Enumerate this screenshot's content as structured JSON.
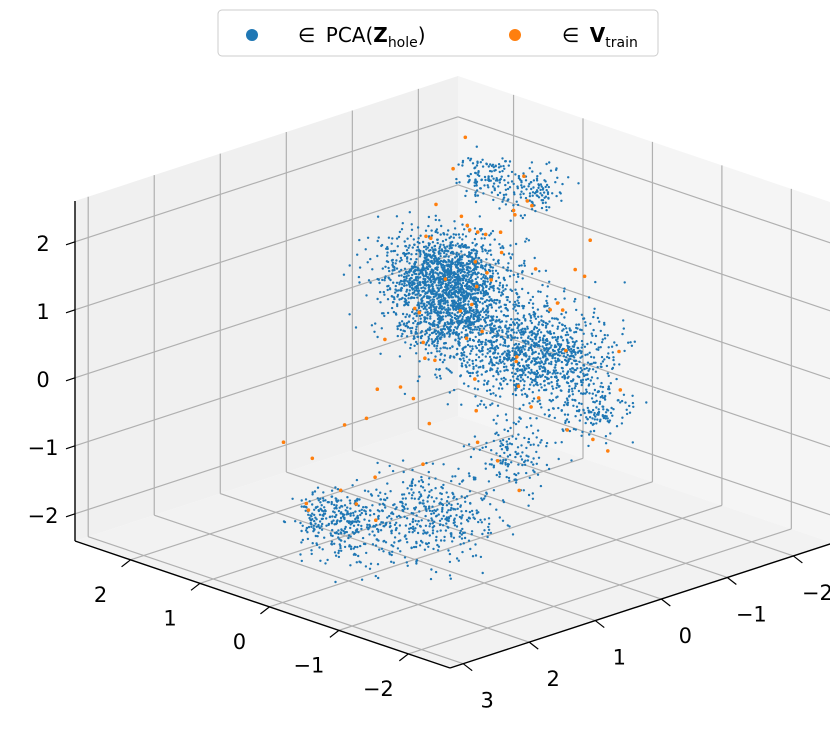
{
  "chart_data": {
    "type": "scatter",
    "projection": "3d",
    "title": "",
    "grid": true,
    "legend_position": "top-center",
    "legend": [
      {
        "symbol": "∈",
        "text": "PCA(",
        "bold": "Z",
        "subscript": "hole",
        "suffix": ")",
        "color": "#1f77b4"
      },
      {
        "symbol": "∈",
        "text": "",
        "bold": "V",
        "subscript": "train",
        "suffix": "",
        "color": "#ff7f0e"
      }
    ],
    "axes": {
      "x": {
        "ticks": [
          "−2",
          "−1",
          "0",
          "1",
          "2"
        ],
        "values": [
          -2,
          -1,
          0,
          1,
          2
        ],
        "range": [
          -2.6,
          2.8
        ]
      },
      "y": {
        "ticks": [
          "−2",
          "−1",
          "0",
          "1",
          "2",
          "3"
        ],
        "values": [
          -2,
          -1,
          0,
          1,
          2,
          3
        ],
        "range": [
          -2.6,
          3.2
        ]
      },
      "z": {
        "ticks": [
          "−2",
          "−1",
          "0",
          "1",
          "2"
        ],
        "values": [
          -2,
          -1,
          0,
          1,
          2
        ],
        "range": [
          -2.4,
          2.6
        ]
      }
    },
    "series": [
      {
        "key": "pca_z_hole",
        "color": "#1f77b4",
        "clusters": [
          {
            "center": [
              0.2,
              0.2,
              1.2
            ],
            "spread": [
              0.45,
              0.35,
              0.35
            ],
            "count": 900
          },
          {
            "center": [
              -0.3,
              -0.3,
              0.3
            ],
            "spread": [
              0.35,
              0.4,
              0.3
            ],
            "count": 650
          },
          {
            "center": [
              -1.3,
              0.2,
              0.8
            ],
            "spread": [
              0.3,
              0.3,
              0.3
            ],
            "count": 350
          },
          {
            "center": [
              -2.0,
              0.4,
              0.3
            ],
            "spread": [
              0.2,
              0.2,
              0.2
            ],
            "count": 160
          },
          {
            "center": [
              -1.4,
              1.0,
              -0.4
            ],
            "spread": [
              0.2,
              0.2,
              0.3
            ],
            "count": 150
          },
          {
            "center": [
              -0.8,
              1.6,
              -1.3
            ],
            "spread": [
              0.35,
              0.3,
              0.3
            ],
            "count": 400
          },
          {
            "center": [
              -0.1,
              2.1,
              -1.6
            ],
            "spread": [
              0.25,
              0.25,
              0.25
            ],
            "count": 250
          },
          {
            "center": [
              0.9,
              1.4,
              -1.9
            ],
            "spread": [
              0.2,
              0.2,
              0.15
            ],
            "count": 100
          },
          {
            "center": [
              1.2,
              -0.6,
              0.9
            ],
            "spread": [
              0.3,
              0.25,
              0.25
            ],
            "count": 500
          },
          {
            "center": [
              0.9,
              -0.4,
              0.2
            ],
            "spread": [
              0.3,
              0.25,
              0.2
            ],
            "count": 260
          },
          {
            "center": [
              1.3,
              -1.2,
              0.0
            ],
            "spread": [
              0.15,
              0.15,
              0.15
            ],
            "count": 100
          },
          {
            "center": [
              1.7,
              -1.3,
              0.2
            ],
            "spread": [
              0.2,
              0.2,
              0.2
            ],
            "count": 160
          },
          {
            "center": [
              2.1,
              -2.0,
              0.3
            ],
            "spread": [
              0.2,
              0.2,
              0.2
            ],
            "count": 160
          },
          {
            "center": [
              2.2,
              -2.4,
              1.4
            ],
            "spread": [
              0.15,
              0.15,
              0.15
            ],
            "count": 120
          },
          {
            "center": [
              0.1,
              -0.9,
              2.4
            ],
            "spread": [
              0.15,
              0.2,
              0.15
            ],
            "count": 120
          }
        ]
      },
      {
        "key": "v_train",
        "color": "#ff7f0e",
        "points": [
          [
            -1.7,
            0.5,
            1.1
          ],
          [
            -1.2,
            0.1,
            1.5
          ],
          [
            -1.0,
            0.0,
            1.3
          ],
          [
            -0.6,
            -0.2,
            1.7
          ],
          [
            -0.3,
            0.0,
            1.9
          ],
          [
            0.0,
            -0.3,
            2.0
          ],
          [
            0.5,
            -0.6,
            1.7
          ],
          [
            0.9,
            -0.9,
            1.5
          ],
          [
            1.3,
            -1.2,
            1.3
          ],
          [
            1.8,
            -1.6,
            1.2
          ],
          [
            2.0,
            -1.9,
            0.9
          ],
          [
            1.6,
            -1.6,
            0.6
          ],
          [
            1.2,
            -1.2,
            0.5
          ],
          [
            0.7,
            -0.6,
            0.6
          ],
          [
            0.3,
            -0.1,
            0.4
          ],
          [
            -0.2,
            0.3,
            0.1
          ],
          [
            -0.6,
            0.7,
            -0.1
          ],
          [
            -1.0,
            1.1,
            -0.3
          ],
          [
            -0.5,
            1.4,
            -0.7
          ],
          [
            0.0,
            1.6,
            -1.0
          ],
          [
            0.4,
            1.7,
            -1.3
          ],
          [
            0.8,
            1.8,
            -1.6
          ],
          [
            -0.9,
            0.4,
            0.7
          ],
          [
            -1.5,
            0.7,
            0.4
          ],
          [
            -2.1,
            0.9,
            0.2
          ],
          [
            -1.9,
            0.3,
            -0.2
          ],
          [
            -1.1,
            0.9,
            -0.6
          ],
          [
            -0.4,
            0.4,
            0.9
          ],
          [
            0.2,
            0.1,
            0.9
          ],
          [
            0.7,
            -0.2,
            1.1
          ],
          [
            1.1,
            -0.4,
            1.5
          ],
          [
            1.5,
            -0.9,
            1.7
          ],
          [
            0.5,
            -1.3,
            1.9
          ],
          [
            -0.1,
            -0.6,
            2.4
          ],
          [
            -1.4,
            -0.1,
            1.9
          ],
          [
            2.3,
            -2.0,
            1.6
          ],
          [
            2.6,
            -2.5,
            1.8
          ],
          [
            2.0,
            -2.6,
            0.9
          ],
          [
            1.0,
            0.4,
            0.3
          ],
          [
            0.3,
            0.9,
            0.0
          ],
          [
            -0.4,
            1.2,
            -0.2
          ],
          [
            -0.7,
            0.2,
            0.5
          ],
          [
            0.6,
            1.1,
            -0.5
          ],
          [
            1.2,
            0.8,
            -0.9
          ],
          [
            1.7,
            1.2,
            -1.2
          ],
          [
            -1.6,
            1.1,
            -0.8
          ],
          [
            -0.2,
            1.8,
            -1.5
          ],
          [
            0.9,
            -0.1,
            -0.1
          ],
          [
            1.4,
            -0.6,
            -0.2
          ],
          [
            1.9,
            -1.0,
            0.0
          ],
          [
            -2.4,
            0.6,
            -0.1
          ],
          [
            -1.8,
            -0.2,
            0.9
          ],
          [
            0.1,
            -0.2,
            1.4
          ],
          [
            0.8,
            -1.0,
            0.8
          ],
          [
            -0.8,
            -0.4,
            1.1
          ],
          [
            -1.2,
            0.5,
            0.1
          ],
          [
            0.4,
            0.6,
            -0.3
          ],
          [
            1.0,
            1.5,
            -1.1
          ],
          [
            -0.3,
            2.2,
            -1.1
          ],
          [
            0.2,
            2.4,
            -1.3
          ],
          [
            1.6,
            -2.2,
            1.1
          ],
          [
            2.5,
            -1.8,
            0.6
          ],
          [
            -0.6,
            -0.8,
            1.5
          ],
          [
            -1.1,
            -0.5,
            2.2
          ],
          [
            0.9,
            -1.6,
            2.1
          ],
          [
            1.3,
            0.2,
            -0.6
          ],
          [
            -0.1,
            0.8,
            0.5
          ],
          [
            0.6,
            0.3,
            0.8
          ],
          [
            -1.4,
            0.9,
            0.6
          ],
          [
            -2.2,
            0.2,
            0.6
          ]
        ]
      }
    ]
  }
}
